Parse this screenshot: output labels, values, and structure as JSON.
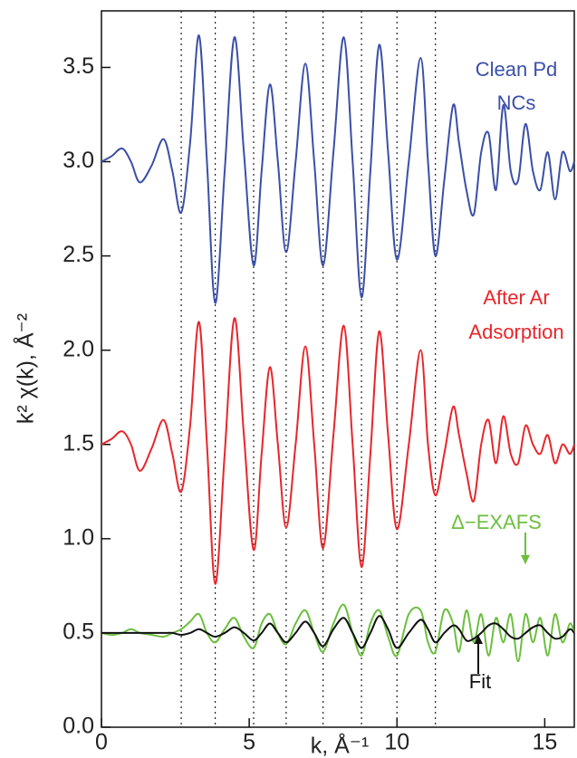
{
  "chart_data": {
    "type": "line",
    "xlabel": "k, Å⁻¹",
    "ylabel": "k² χ(k), Å⁻²",
    "xlim": [
      0,
      16
    ],
    "ylim": [
      0,
      3.8
    ],
    "xticks": [
      0,
      5,
      10,
      15
    ],
    "yticks": [
      {
        "value": 0,
        "label": "0.0"
      },
      0.5,
      {
        "value": 1,
        "label": "1.0"
      },
      1.5,
      {
        "value": 2,
        "label": "2.0"
      },
      2.5,
      {
        "value": 3,
        "label": "3.0"
      },
      3.5
    ],
    "vlines": [
      2.7,
      3.85,
      5.15,
      6.25,
      7.5,
      8.8,
      10.0,
      11.3
    ],
    "x": [
      0,
      0.35,
      0.7,
      1.0,
      1.3,
      1.7,
      2.1,
      2.4,
      2.7,
      3.0,
      3.3,
      3.57,
      3.85,
      4.17,
      4.5,
      4.82,
      5.15,
      5.42,
      5.7,
      5.97,
      6.25,
      6.57,
      6.9,
      7.2,
      7.5,
      7.85,
      8.2,
      8.5,
      8.8,
      9.1,
      9.4,
      9.7,
      10.0,
      10.4,
      10.8,
      11.05,
      11.3,
      11.6,
      11.9,
      12.1,
      12.35,
      12.6,
      12.85,
      13.1,
      13.35,
      13.6,
      13.85,
      14.1,
      14.35,
      14.6,
      14.85,
      15.1,
      15.35,
      15.6,
      15.85,
      16.0
    ],
    "series": [
      {
        "name": [
          "Clean Pd",
          "NCs"
        ],
        "color": "#3a4fa8",
        "values": [
          3.0,
          3.03,
          3.07,
          3.0,
          2.89,
          2.98,
          3.12,
          2.95,
          2.73,
          3.1,
          3.67,
          3.0,
          2.25,
          2.95,
          3.66,
          3.05,
          2.45,
          2.95,
          3.41,
          3.0,
          2.52,
          3.0,
          3.52,
          3.0,
          2.45,
          3.05,
          3.66,
          3.0,
          2.28,
          2.95,
          3.62,
          3.05,
          2.48,
          3.0,
          3.55,
          3.0,
          2.5,
          2.9,
          3.3,
          3.1,
          2.85,
          2.72,
          3.05,
          3.15,
          2.85,
          3.3,
          2.95,
          2.9,
          3.2,
          2.95,
          2.85,
          3.05,
          2.8,
          3.05,
          2.95,
          3.0
        ]
      },
      {
        "name": [
          "After Ar",
          "Adsorption"
        ],
        "color": "#e8262b",
        "values": [
          1.5,
          1.53,
          1.57,
          1.5,
          1.36,
          1.48,
          1.63,
          1.45,
          1.25,
          1.6,
          2.15,
          1.5,
          0.76,
          1.45,
          2.17,
          1.55,
          0.94,
          1.45,
          1.91,
          1.5,
          1.06,
          1.5,
          2.02,
          1.5,
          0.95,
          1.55,
          2.13,
          1.5,
          0.85,
          1.45,
          2.1,
          1.55,
          1.05,
          1.5,
          2.0,
          1.5,
          1.23,
          1.45,
          1.7,
          1.55,
          1.35,
          1.2,
          1.5,
          1.63,
          1.4,
          1.65,
          1.45,
          1.4,
          1.6,
          1.5,
          1.45,
          1.55,
          1.4,
          1.5,
          1.45,
          1.5
        ]
      },
      {
        "name": [
          "Δ−EXAFS"
        ],
        "color": "#6cbf3f",
        "values": [
          0.5,
          0.49,
          0.5,
          0.52,
          0.5,
          0.49,
          0.48,
          0.5,
          0.52,
          0.56,
          0.6,
          0.5,
          0.45,
          0.52,
          0.58,
          0.48,
          0.42,
          0.55,
          0.6,
          0.5,
          0.44,
          0.55,
          0.62,
          0.5,
          0.4,
          0.55,
          0.65,
          0.5,
          0.38,
          0.55,
          0.62,
          0.48,
          0.38,
          0.6,
          0.62,
          0.45,
          0.4,
          0.62,
          0.55,
          0.4,
          0.62,
          0.45,
          0.6,
          0.38,
          0.58,
          0.45,
          0.6,
          0.35,
          0.6,
          0.45,
          0.58,
          0.38,
          0.6,
          0.45,
          0.55,
          0.5
        ]
      },
      {
        "name": [
          "Fit"
        ],
        "color": "#111111",
        "values": [
          0.5,
          0.5,
          0.5,
          0.5,
          0.5,
          0.5,
          0.5,
          0.5,
          0.49,
          0.5,
          0.52,
          0.5,
          0.48,
          0.5,
          0.53,
          0.5,
          0.46,
          0.5,
          0.55,
          0.5,
          0.45,
          0.5,
          0.56,
          0.5,
          0.43,
          0.52,
          0.58,
          0.5,
          0.42,
          0.5,
          0.59,
          0.52,
          0.42,
          0.5,
          0.57,
          0.52,
          0.45,
          0.5,
          0.54,
          0.52,
          0.46,
          0.47,
          0.5,
          0.54,
          0.55,
          0.52,
          0.48,
          0.47,
          0.5,
          0.53,
          0.54,
          0.5,
          0.47,
          0.48,
          0.52,
          0.5
        ]
      }
    ]
  }
}
